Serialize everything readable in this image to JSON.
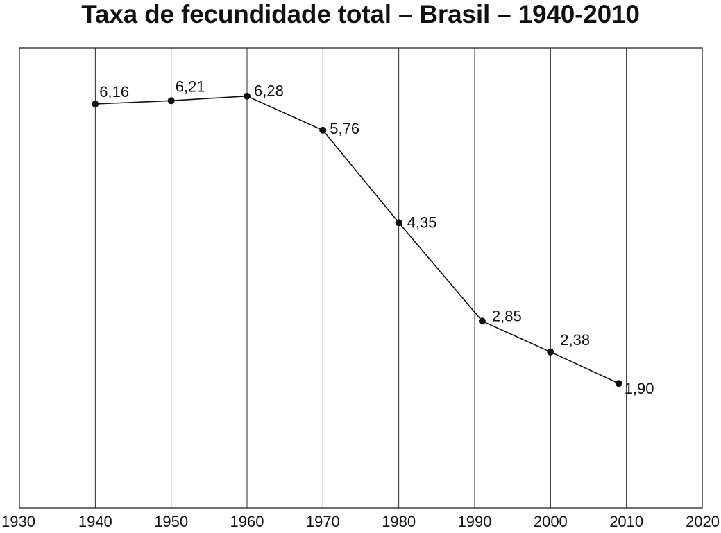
{
  "chart_data": {
    "type": "line",
    "title": "Taxa de fecundidade total – Brasil – 1940-2010",
    "xlabel": "",
    "ylabel": "",
    "xlim": [
      1930,
      2020
    ],
    "ylim": [
      0,
      7
    ],
    "x_ticks": [
      1930,
      1940,
      1950,
      1960,
      1970,
      1980,
      1990,
      2000,
      2010,
      2020
    ],
    "x_tick_labels": [
      "1930",
      "1940",
      "1950",
      "1960",
      "1970",
      "1980",
      "1990",
      "2000",
      "2010",
      "2020"
    ],
    "grid": "vertical",
    "legend": "none",
    "line_color": "#111111",
    "series": [
      {
        "x": [
          1940,
          1950,
          1960,
          1970,
          1980,
          1991,
          2000,
          2009
        ],
        "values": [
          6.16,
          6.21,
          6.28,
          5.76,
          4.35,
          2.85,
          2.38,
          1.9
        ],
        "labels": [
          "6,16",
          "6,21",
          "6,28",
          "5,76",
          "4,35",
          "2,85",
          "2,38",
          "1,90"
        ]
      }
    ]
  }
}
